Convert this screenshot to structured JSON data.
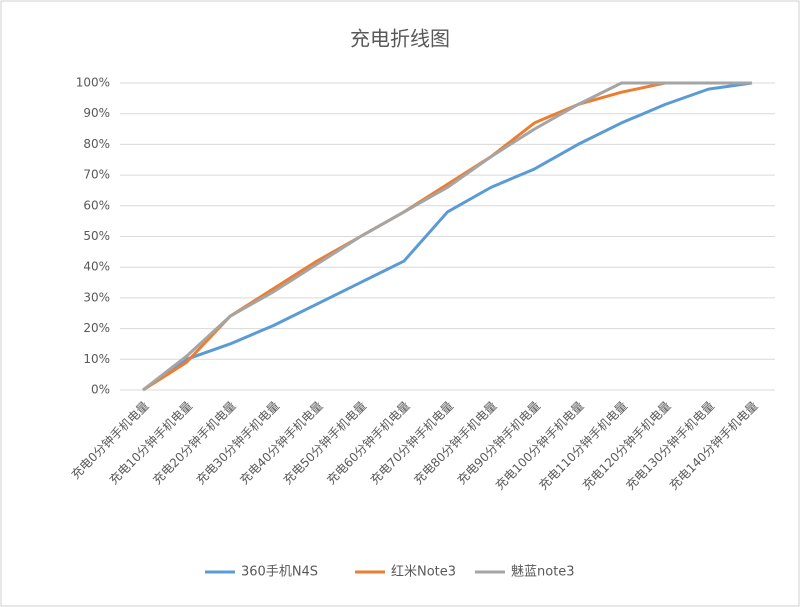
{
  "chart_data": {
    "type": "line",
    "title": "充电折线图",
    "categories": [
      "充电0分钟手机电量",
      "充电10分钟手机电量",
      "充电20分钟手机电量",
      "充电30分钟手机电量",
      "充电40分钟手机电量",
      "充电50分钟手机电量",
      "充电60分钟手机电量",
      "充电70分钟手机电量",
      "充电80分钟手机电量",
      "充电90分钟手机电量",
      "充电100分钟手机电量",
      "充电110分钟手机电量",
      "充电120分钟手机电量",
      "充电130分钟手机电量",
      "充电140分钟手机电量"
    ],
    "series": [
      {
        "name": "360手机N4S",
        "color": "#5b9bd5",
        "values": [
          0,
          10,
          15,
          21,
          28,
          35,
          42,
          58,
          66,
          72,
          80,
          87,
          93,
          98,
          100
        ]
      },
      {
        "name": "红米Note3",
        "color": "#ed7d31",
        "values": [
          0,
          9,
          24,
          33,
          42,
          50,
          58,
          67,
          76,
          87,
          93,
          97,
          100,
          100,
          100
        ]
      },
      {
        "name": "魅蓝note3",
        "color": "#a5a5a5",
        "values": [
          0,
          11,
          24,
          32,
          41,
          50,
          58,
          66,
          76,
          85,
          93,
          100,
          100,
          100,
          100
        ]
      }
    ],
    "ylim": [
      0,
      100
    ],
    "yticks": [
      {
        "value": 0,
        "label": "0%"
      },
      {
        "value": 10,
        "label": "10%"
      },
      {
        "value": 20,
        "label": "20%"
      },
      {
        "value": 30,
        "label": "30%"
      },
      {
        "value": 40,
        "label": "40%"
      },
      {
        "value": 50,
        "label": "50%"
      },
      {
        "value": 60,
        "label": "60%"
      },
      {
        "value": 70,
        "label": "70%"
      },
      {
        "value": 80,
        "label": "80%"
      },
      {
        "value": 90,
        "label": "90%"
      },
      {
        "value": 100,
        "label": "100%"
      }
    ],
    "grid": true,
    "legend": "bottom"
  }
}
